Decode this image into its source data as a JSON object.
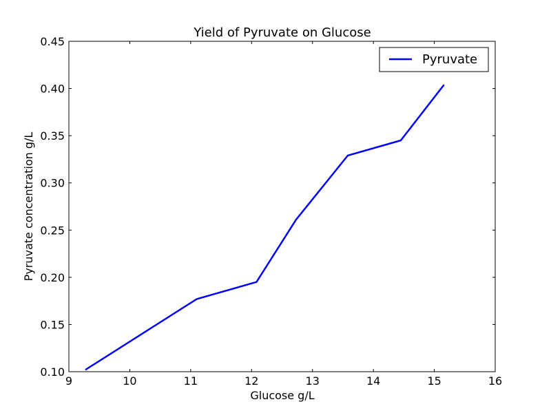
{
  "chart_data": {
    "type": "line",
    "title": "Yield of Pyruvate on Glucose",
    "xlabel": "Glucose g/L",
    "ylabel": "Pyruvate concentration g/L",
    "xlim": [
      9,
      16
    ],
    "ylim": [
      0.1,
      0.45
    ],
    "xticks": [
      "9",
      "10",
      "11",
      "12",
      "13",
      "14",
      "15",
      "16"
    ],
    "yticks": [
      "0.10",
      "0.15",
      "0.20",
      "0.25",
      "0.30",
      "0.35",
      "0.40",
      "0.45"
    ],
    "grid": false,
    "legend_position": "top-right",
    "series": [
      {
        "name": "Pyruvate",
        "color": "#0000ff",
        "x": [
          9.27,
          11.1,
          12.08,
          12.73,
          13.58,
          14.45,
          15.16
        ],
        "y": [
          0.102,
          0.177,
          0.195,
          0.261,
          0.329,
          0.345,
          0.404
        ]
      }
    ]
  }
}
